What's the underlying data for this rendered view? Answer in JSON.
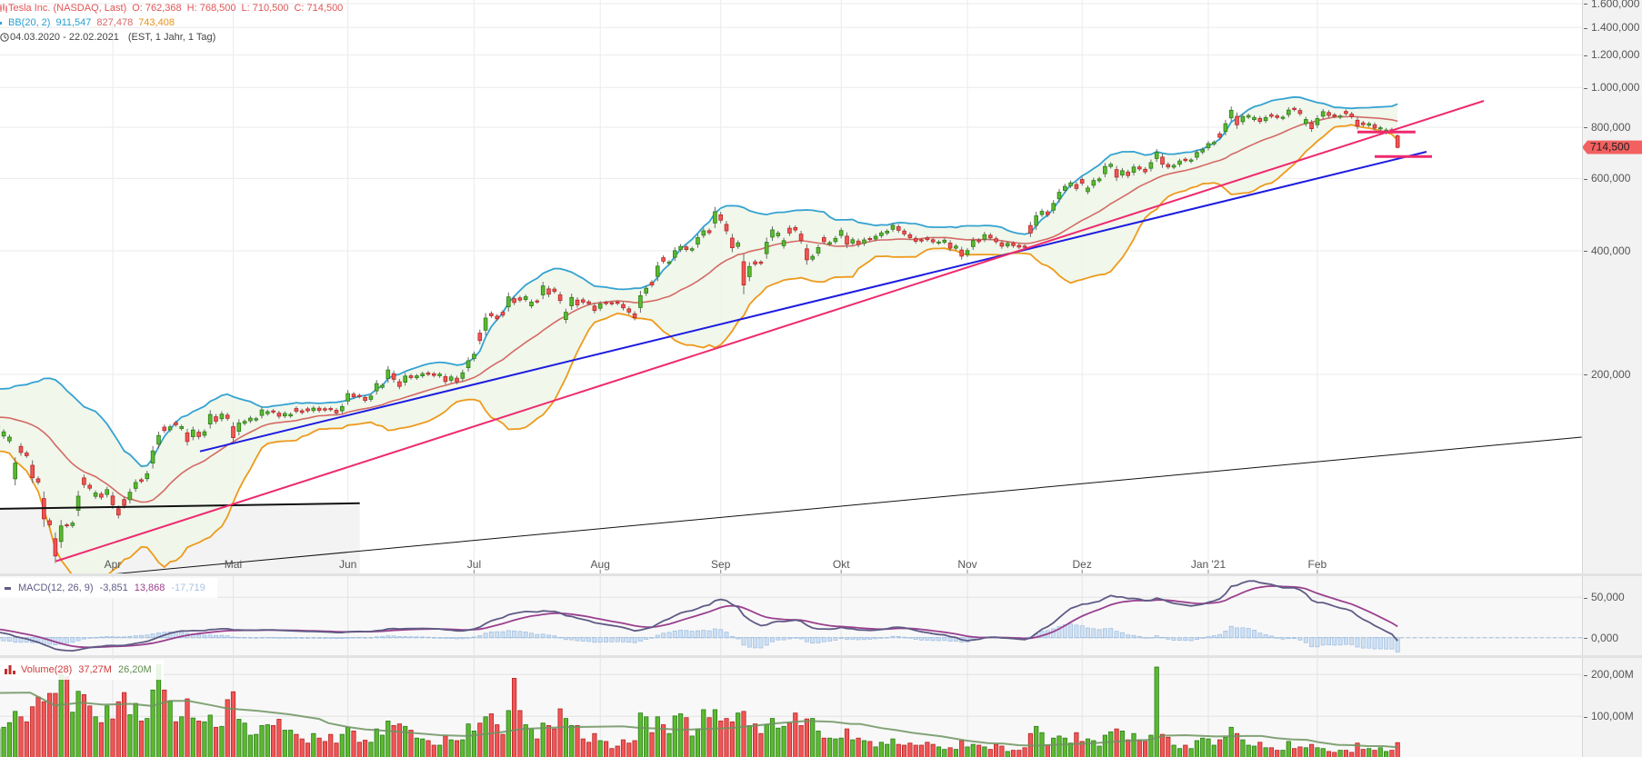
{
  "header": {
    "title": "Tesla Inc. (NASDAQ, Last)",
    "open": "O: 762,368",
    "high": "H: 768,500",
    "low": "L: 710,500",
    "close": "C: 714,500"
  },
  "bb_legend": {
    "label": "BB(20, 2)",
    "upper": "911,547",
    "middle": "827,478",
    "lower": "743,408"
  },
  "range": {
    "dates": "04.03.2020 - 22.02.2021",
    "info": "(EST, 1 Jahr, 1 Tag)"
  },
  "price_axis": {
    "ticks": [
      {
        "label": "1.600,000",
        "value": 1600
      },
      {
        "label": "1.400,000",
        "value": 1400
      },
      {
        "label": "1.200,000",
        "value": 1200
      },
      {
        "label": "1.000,000",
        "value": 1000
      },
      {
        "label": "800,000",
        "value": 800
      },
      {
        "label": "600,000",
        "value": 600
      },
      {
        "label": "400,000",
        "value": 400
      },
      {
        "label": "200,000",
        "value": 200
      }
    ],
    "last_price_label": "714,500",
    "last_price": 714.5
  },
  "time_axis": {
    "labels": [
      {
        "label": "Apr",
        "index": 20
      },
      {
        "label": "Mai",
        "index": 41
      },
      {
        "label": "Jun",
        "index": 61
      },
      {
        "label": "Jul",
        "index": 83
      },
      {
        "label": "Aug",
        "index": 105
      },
      {
        "label": "Sep",
        "index": 126
      },
      {
        "label": "Okt",
        "index": 147
      },
      {
        "label": "Nov",
        "index": 169
      },
      {
        "label": "Dez",
        "index": 189
      },
      {
        "label": "Jan '21",
        "index": 211
      },
      {
        "label": "Feb",
        "index": 230
      }
    ]
  },
  "macd_legend": {
    "label": "MACD(12, 26, 9)",
    "macd": "-3,851",
    "signal": "13,868",
    "histogram": "-17,719"
  },
  "macd_axis": {
    "ticks": [
      {
        "label": "50,000",
        "value": 50
      },
      {
        "label": "0,000",
        "value": 0
      }
    ]
  },
  "volume_legend": {
    "label": "Volume(28)",
    "volume": "37,27M",
    "average": "26,20M"
  },
  "volume_axis": {
    "ticks": [
      {
        "label": "200,00M",
        "value": 200
      },
      {
        "label": "100,00M",
        "value": 100
      }
    ]
  },
  "colors": {
    "header_red": "#e25555",
    "up": "#5db92f",
    "up_border": "#2a7d1a",
    "down": "#f05656",
    "down_border": "#b82626",
    "wick": "#6a6a6a",
    "bb_upper": "#35a2d2",
    "bb_middle": "#d46a66",
    "bb_lower": "#ee9a1c",
    "bb_fill": "#eef6e7",
    "macd": "#5e5b85",
    "signal": "#9a3f8e",
    "histogram": "#cfe0f3",
    "histogram_border": "#9dbde0",
    "volume_ma": "#6e9460",
    "last_price_bg": "#f26060",
    "grid": "#ebebeb",
    "shade": "#f3f3f3"
  },
  "chart_data": [
    {
      "type": "candlestick",
      "title": "Tesla Inc. (NASDAQ, Last)",
      "period": "04.03.2020 - 22.02.2021",
      "interval": "1 Tag",
      "y_scale": "log",
      "ylim": [
        64,
        1650
      ],
      "x_tick_labels": [
        "Apr",
        "Mai",
        "Jun",
        "Jul",
        "Aug",
        "Sep",
        "Okt",
        "Nov",
        "Dez",
        "Jan '21",
        "Feb"
      ],
      "y_tick_labels": [
        "1.600,000",
        "1.400,000",
        "1.200,000",
        "1.000,000",
        "800,000",
        "600,000",
        "400,000",
        "200,000"
      ],
      "closes": [
        149.9,
        144.91,
        140.7,
        121.6,
        129.07,
        126.85,
        112.11,
        109.32,
        89.01,
        86.04,
        72.24,
        85.53,
        85.51,
        86.86,
        101.0,
        107.85,
        105.63,
        102.87,
        100.43,
        104.8,
        96.31,
        90.89,
        96.0,
        103.25,
        109.09,
        109.77,
        114.6,
        130.19,
        141.98,
        145.97,
        149.04,
        150.78,
        149.27,
        137.34,
        146.42,
        141.13,
        145.03,
        159.75,
        153.82,
        160.1,
        156.38,
        140.26,
        152.24,
        153.64,
        156.52,
        156.01,
        163.88,
        162.26,
        161.88,
        158.19,
        160.67,
        159.83,
        162.73,
        161.6,
        163.11,
        165.52,
        163.38,
        163.77,
        164.05,
        161.16,
        167.0,
        179.62,
        176.31,
        176.59,
        172.88,
        177.13,
        189.98,
        188.13,
        205.01,
        194.57,
        187.06,
        198.18,
        196.43,
        198.36,
        200.79,
        200.18,
        198.86,
        200.36,
        192.17,
        197.2,
        191.95,
        201.87,
        215.96,
        223.93,
        241.73,
        274.32,
        277.97,
        273.18,
        278.86,
        308.93,
        299.41,
        303.36,
        309.2,
        300.13,
        300.17,
        328.6,
        313.67,
        318.47,
        302.61,
        283.4,
        307.92,
        295.3,
        299.82,
        297.5,
        286.15,
        297.0,
        297.4,
        297.0,
        297.92,
        290.54,
        283.71,
        274.88,
        310.95,
        324.2,
        330.14,
        367.13,
        377.42,
        375.71,
        400.37,
        410.0,
        402.84,
        404.67,
        430.63,
        447.75,
        442.68,
        498.32,
        475.05,
        447.37,
        407.0,
        418.32,
        330.21,
        366.28,
        371.34,
        372.72,
        419.62,
        449.76,
        441.76,
        423.43,
        442.15,
        449.39,
        424.23,
        380.36,
        387.79,
        407.34,
        421.2,
        419.07,
        429.01,
        448.16,
        415.09,
        425.68,
        413.98,
        425.3,
        425.92,
        434.0,
        442.3,
        446.65,
        461.3,
        448.88,
        439.67,
        430.83,
        421.94,
        422.64,
        425.79,
        420.63,
        420.28,
        424.68,
        406.02,
        410.83,
        388.04,
        400.51,
        423.9,
        420.98,
        438.09,
        429.95,
        421.26,
        410.36,
        417.13,
        411.76,
        408.5,
        408.09,
        441.61,
        486.64,
        499.27,
        489.61,
        521.85,
        555.38,
        574.0,
        585.76,
        567.6,
        584.76,
        568.82,
        593.38,
        599.04,
        641.76,
        649.88,
        604.48,
        627.07,
        609.99,
        639.83,
        633.25,
        622.77,
        655.9,
        695.0,
        649.86,
        640.34,
        645.98,
        661.77,
        663.69,
        665.99,
        694.78,
        705.67,
        729.77,
        735.11,
        755.98,
        816.04,
        880.02,
        811.19,
        849.44,
        854.41,
        845.0,
        826.16,
        844.55,
        850.45,
        844.99,
        846.64,
        880.8,
        883.09,
        864.16,
        835.43,
        793.53,
        839.81,
        872.79,
        854.69,
        849.99,
        852.23,
        863.42,
        849.46,
        804.82,
        811.66,
        816.12,
        796.22,
        798.15,
        787.38,
        781.3,
        714.5
      ],
      "candle_direction": "ggggrrrrrrrgrggrrgrgrrrggrgggrgrgrgrggrgrrggggggrrggrrrgrrrrggrrrggggrrgrggrrgrgrgggrgrrrgrrggrgrrrggrrrrgrrrrrrggrgrgggrgggrgrrrgrgrrggggrrrrggrgggrgrgrggggrrrrrrrggrgrggrgrrrgrrrrggrggggrrgggggrgrgrrggrrggrgggggrggrgggrgrrggrrgrggrrgrrrrgrggrr",
      "last_ohlc": {
        "open": 762.368,
        "high": 768.5,
        "low": 710.5,
        "close": 714.5
      },
      "bb_warmup_closes": [
        146.94,
        149.79,
        149.61,
        154.26,
        154.88,
        153.46,
        160.8,
        160.01,
        171.68,
        183.48,
        179.88,
        180.2,
        166.76,
        159.98,
        155.76,
        135.8,
        133.6,
        148.72,
        149.1
      ],
      "overlays": [
        {
          "name": "BB(20, 2)",
          "period": 20,
          "stddev": 2,
          "upper_last": 911.547,
          "middle_last": 827.478,
          "lower_last": 743.408
        }
      ],
      "drawings": [
        {
          "name": "support-zone-shade",
          "type": "area_below",
          "color": "shade",
          "points": [
            [
              0.35,
              94.1
            ],
            [
              63.07,
              97.1
            ]
          ]
        },
        {
          "name": "trendline-thin-black",
          "type": "line",
          "color": "#111111",
          "width": 1,
          "points": [
            [
              16.2,
              64.5
            ],
            [
              276.1,
              140.7
            ]
          ]
        },
        {
          "name": "horizontal-line-black",
          "type": "line",
          "color": "#111111",
          "width": 2,
          "points": [
            [
              0.35,
              94.1
            ],
            [
              63.07,
              97.1
            ]
          ]
        },
        {
          "name": "trendline-blue",
          "type": "line",
          "color": "#1c1ce0",
          "width": 2,
          "points": [
            [
              35.22,
              129.9
            ],
            [
              249.04,
              697.2
            ]
          ]
        },
        {
          "name": "trendline-pink",
          "type": "line",
          "color": "#ee2a6e",
          "width": 2,
          "points": [
            [
              10.13,
              70.18
            ],
            [
              259.03,
              927.4
            ]
          ]
        },
        {
          "name": "level-line-pink-upper",
          "type": "line",
          "color": "#ee2a6e",
          "width": 3,
          "points": [
            [
              237.0,
              778.7
            ],
            [
              247.1,
              778.7
            ]
          ]
        },
        {
          "name": "level-line-pink-lower",
          "type": "line",
          "color": "#ee2a6e",
          "width": 3,
          "points": [
            [
              240.0,
              678.5
            ],
            [
              250.0,
              678.5
            ]
          ]
        }
      ]
    },
    {
      "type": "line",
      "title": "MACD(12, 26, 9)",
      "series": [
        "MACD",
        "Signal",
        "Histogram"
      ],
      "seed": {
        "ema12": 156,
        "ema26": 148,
        "signal": 11.5
      },
      "last": {
        "macd": -3.851,
        "signal": 13.868,
        "histogram": -17.719
      },
      "y_tick_labels": [
        "50,000",
        "0,000"
      ],
      "ylim": [
        -22,
        75
      ]
    },
    {
      "type": "bar",
      "title": "Volume(28)",
      "unit": "M",
      "values": [
        70,
        74,
        85,
        112,
        99,
        87,
        123,
        146,
        135,
        155,
        155,
        200,
        195,
        110,
        160,
        152,
        125,
        99,
        85,
        125,
        94,
        135,
        157,
        104,
        131,
        89,
        95,
        163,
        223,
        163,
        137,
        87,
        99,
        142,
        96,
        89,
        87,
        103,
        74,
        76,
        140,
        159,
        93,
        84,
        55,
        57,
        78,
        80,
        78,
        93,
        67,
        67,
        57,
        46,
        36,
        59,
        48,
        40,
        57,
        36,
        57,
        74,
        65,
        38,
        43,
        38,
        70,
        55,
        89,
        78,
        82,
        76,
        67,
        48,
        46,
        42,
        31,
        31,
        53,
        44,
        42,
        44,
        82,
        65,
        84,
        99,
        106,
        80,
        57,
        114,
        191,
        114,
        80,
        70,
        46,
        84,
        78,
        70,
        118,
        95,
        78,
        78,
        46,
        38,
        59,
        42,
        40,
        23,
        29,
        44,
        36,
        42,
        108,
        99,
        61,
        99,
        80,
        59,
        101,
        106,
        97,
        53,
        70,
        116,
        97,
        116,
        89,
        95,
        87,
        108,
        112,
        78,
        82,
        59,
        80,
        95,
        72,
        76,
        84,
        108,
        78,
        94,
        95,
        65,
        48,
        48,
        46,
        48,
        70,
        44,
        48,
        42,
        40,
        27,
        38,
        33,
        46,
        33,
        31,
        36,
        31,
        31,
        38,
        33,
        27,
        21,
        25,
        21,
        42,
        27,
        33,
        31,
        27,
        21,
        33,
        29,
        16,
        19,
        19,
        25,
        59,
        76,
        61,
        31,
        48,
        53,
        48,
        36,
        61,
        40,
        46,
        42,
        29,
        55,
        63,
        70,
        65,
        44,
        59,
        44,
        40,
        55,
        218,
        57,
        50,
        31,
        23,
        31,
        23,
        42,
        48,
        46,
        31,
        44,
        50,
        74,
        59,
        44,
        31,
        29,
        38,
        25,
        25,
        19,
        19,
        40,
        23,
        27,
        25,
        33,
        25,
        23,
        16,
        14,
        19,
        19,
        14,
        36,
        21,
        23,
        19,
        25,
        16,
        19,
        37.27
      ],
      "ma28": [
        [
          0,
          156
        ],
        [
          5.6,
          157
        ],
        [
          9.9,
          126
        ],
        [
          14.6,
          133
        ],
        [
          18.3,
          128
        ],
        [
          23.1,
          130
        ],
        [
          26.8,
          125
        ],
        [
          30,
          137
        ],
        [
          33.2,
          137
        ],
        [
          37.4,
          126
        ],
        [
          40,
          119
        ],
        [
          45.4,
          113
        ],
        [
          50.7,
          105
        ],
        [
          56,
          94
        ],
        [
          57.6,
          84
        ],
        [
          61.3,
          74
        ],
        [
          64,
          69
        ],
        [
          69.2,
          64
        ],
        [
          77.1,
          55
        ],
        [
          81.9,
          53
        ],
        [
          87.7,
          62
        ],
        [
          91.4,
          70
        ],
        [
          98.3,
          74
        ],
        [
          108.9,
          76
        ],
        [
          111.5,
          73
        ],
        [
          119.5,
          68
        ],
        [
          127.5,
          72
        ],
        [
          132.8,
          79
        ],
        [
          136,
          84
        ],
        [
          140.8,
          89
        ],
        [
          143.4,
          88
        ],
        [
          145.5,
          87
        ],
        [
          148.7,
          82
        ],
        [
          150.3,
          82
        ],
        [
          154,
          72
        ],
        [
          156.7,
          67
        ],
        [
          159.3,
          61
        ],
        [
          164.6,
          52
        ],
        [
          168.9,
          42
        ],
        [
          172.6,
          36
        ],
        [
          175.3,
          35
        ],
        [
          177.9,
          31
        ],
        [
          180.6,
          30
        ],
        [
          185.9,
          33
        ],
        [
          191.1,
          36
        ],
        [
          196.4,
          41
        ],
        [
          200.7,
          44
        ],
        [
          203.3,
          54
        ],
        [
          207,
          55
        ],
        [
          212.3,
          52
        ],
        [
          217.6,
          53
        ],
        [
          220.3,
          53
        ],
        [
          222.9,
          48
        ],
        [
          225.6,
          45
        ],
        [
          228.2,
          44
        ],
        [
          230.3,
          38
        ],
        [
          233.5,
          32
        ],
        [
          236.2,
          31
        ],
        [
          238.8,
          29
        ],
        [
          241.5,
          29
        ],
        [
          244,
          26.2
        ]
      ],
      "last": {
        "volume": 37.27,
        "ma": 26.2
      },
      "y_tick_labels": [
        "200,00M",
        "100,00M"
      ],
      "ylim": [
        0,
        240
      ]
    }
  ]
}
